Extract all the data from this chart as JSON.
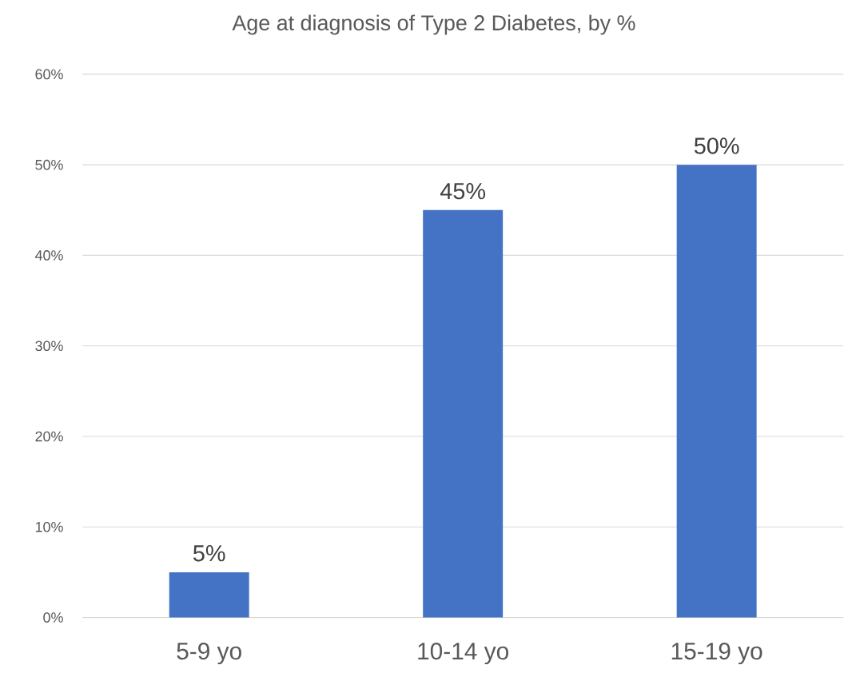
{
  "chart_data": {
    "type": "bar",
    "title": "Age at diagnosis of Type 2 Diabetes, by %",
    "categories": [
      "5-9 yo",
      "10-14 yo",
      "15-19 yo"
    ],
    "values": [
      5,
      45,
      50
    ],
    "value_labels": [
      "5%",
      "45%",
      "50%"
    ],
    "color": "#4472c4",
    "ylim": [
      0,
      60
    ],
    "yticks": [
      {
        "value": 0,
        "label": "0%"
      },
      {
        "value": 10,
        "label": "10%"
      },
      {
        "value": 20,
        "label": "20%"
      },
      {
        "value": 30,
        "label": "30%"
      },
      {
        "value": 40,
        "label": "40%"
      },
      {
        "value": 50,
        "label": "50%"
      },
      {
        "value": 60,
        "label": "60%"
      }
    ],
    "grid": "y"
  }
}
